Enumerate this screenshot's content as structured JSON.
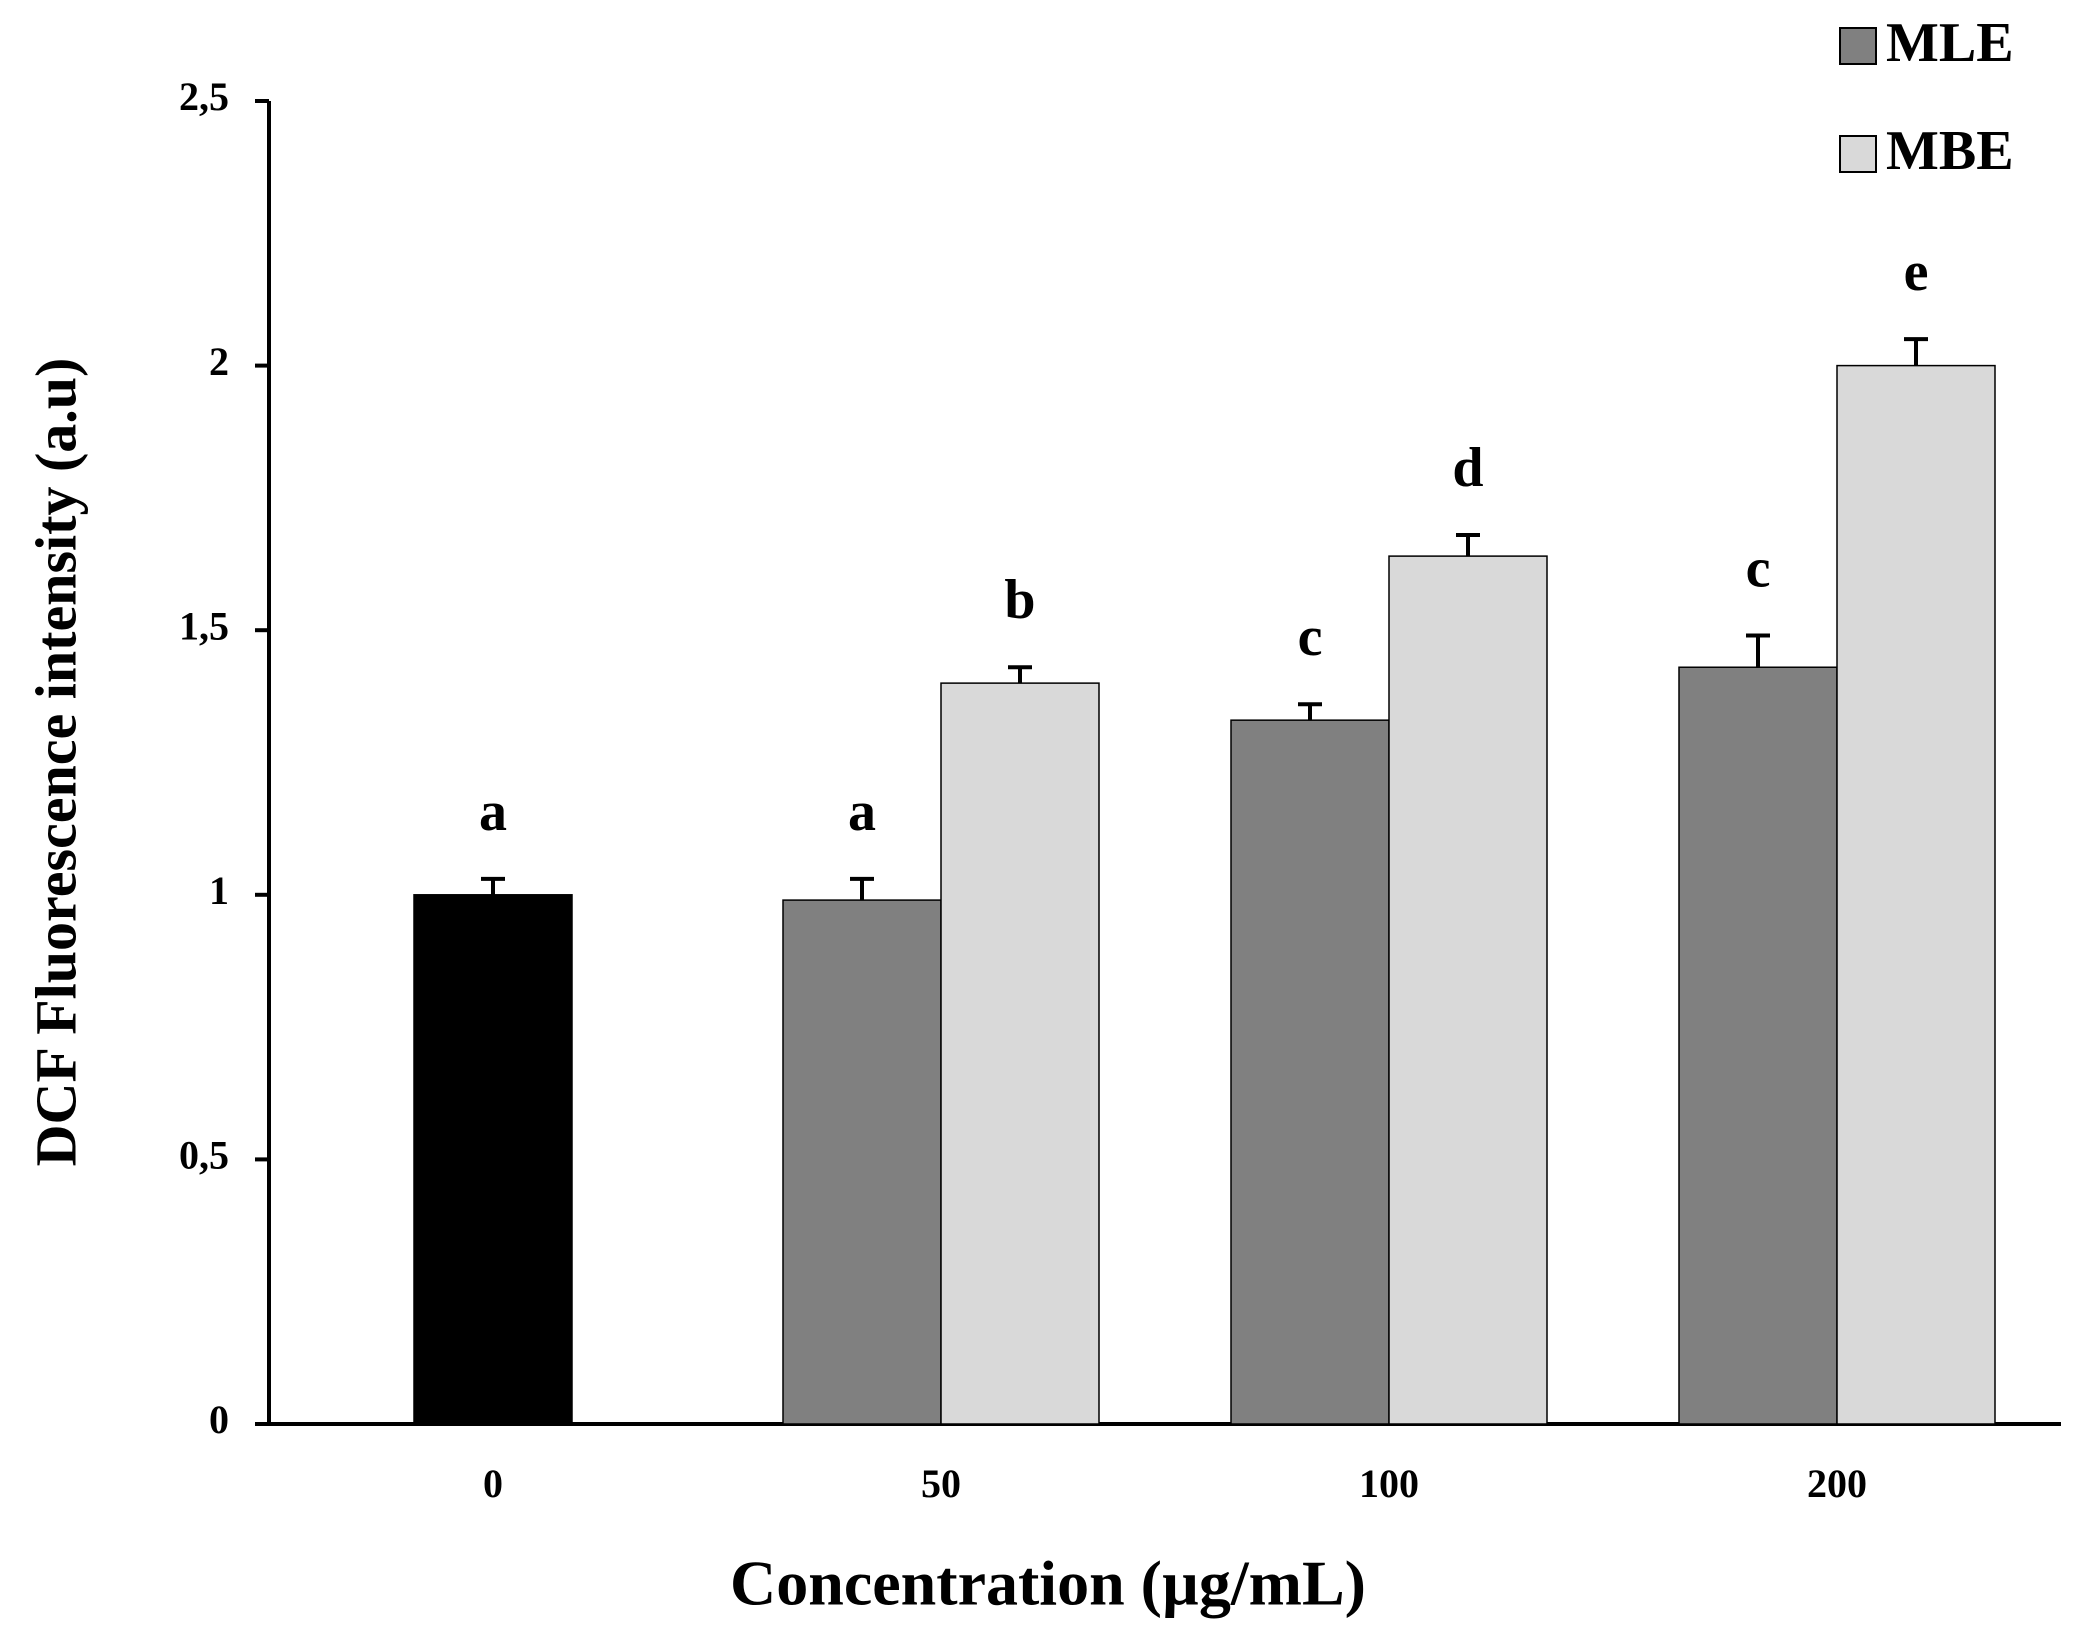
{
  "chart_data": {
    "type": "bar",
    "x_label": "Concentration (µg/mL)",
    "y_label": "DCF Fluorescence intensity (a.u)",
    "categories": [
      "0",
      "50",
      "100",
      "200"
    ],
    "control": {
      "value": 1.0,
      "error": 0.03,
      "letter": "a",
      "color": "#000000"
    },
    "series": [
      {
        "name": "MLE",
        "color": "#808080",
        "values": [
          null,
          0.99,
          1.33,
          1.43
        ],
        "errors": [
          null,
          0.04,
          0.03,
          0.06
        ],
        "letters": [
          null,
          "a",
          "c",
          "c"
        ]
      },
      {
        "name": "MBE",
        "color": "#d9d9d9",
        "values": [
          null,
          1.4,
          1.64,
          2.0
        ],
        "errors": [
          null,
          0.03,
          0.04,
          0.05
        ],
        "letters": [
          null,
          "b",
          "d",
          "e"
        ]
      }
    ],
    "ylim": [
      0,
      2.5
    ],
    "yticks": [
      0,
      {
        "value": 0.5,
        "label": "0,5"
      },
      1,
      {
        "value": 1.5,
        "label": "1,5"
      },
      2,
      {
        "value": 2.5,
        "label": "2,5"
      }
    ],
    "legend": "top-right"
  }
}
